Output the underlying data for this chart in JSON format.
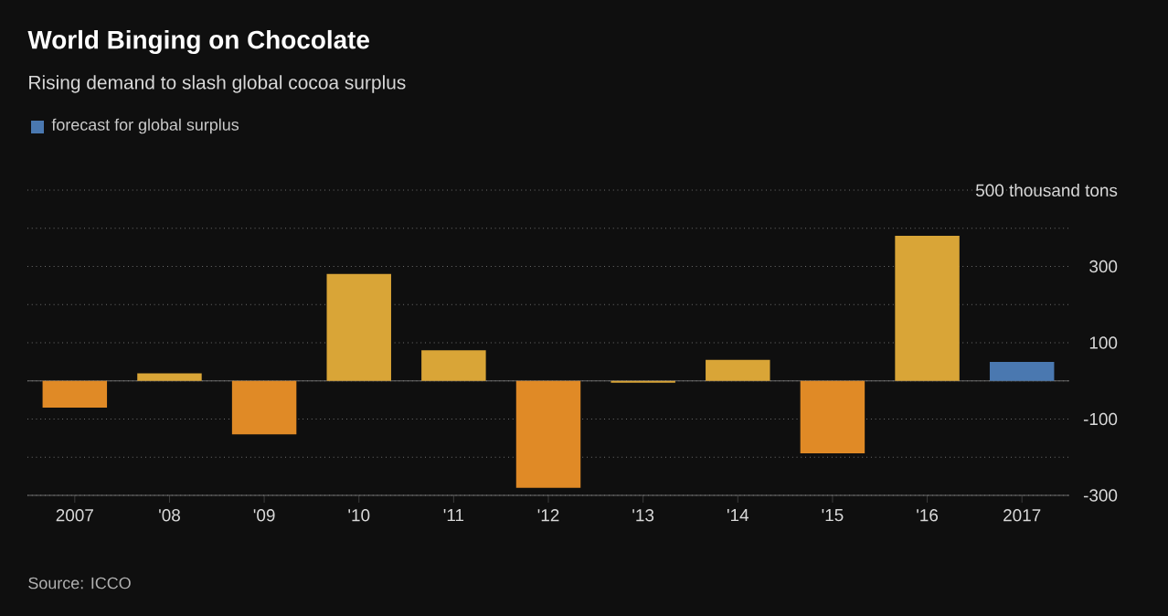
{
  "chart_data": {
    "type": "bar",
    "title": "World Binging on Chocolate",
    "subtitle": "Rising demand to slash global cocoa surplus",
    "categories": [
      "2007",
      "'08",
      "'09",
      "'10",
      "'11",
      "'12",
      "'13",
      "'14",
      "'15",
      "'16",
      "2017"
    ],
    "series": [
      {
        "colors": [
          "#e08a26",
          "#d9a537",
          "#e08a26",
          "#d9a537",
          "#d9a537",
          "#e08a26",
          "#d9a537",
          "#d9a537",
          "#e08a26",
          "#d9a537",
          "#d9a537"
        ],
        "values": [
          -70,
          20,
          -140,
          280,
          80,
          -280,
          -5,
          55,
          -190,
          380,
          null
        ]
      },
      {
        "name": "forecast for global surplus",
        "color": "#4a78b0",
        "values": [
          null,
          null,
          null,
          null,
          null,
          null,
          null,
          null,
          null,
          null,
          50
        ]
      }
    ],
    "ylim": [
      -300,
      500
    ],
    "yticks": [
      {
        "value": 500,
        "label": "500 thousand tons"
      },
      {
        "value": 400,
        "label": null
      },
      300,
      {
        "value": 200,
        "label": null
      },
      100,
      {
        "value": 0,
        "label": null
      },
      -100,
      {
        "value": -200,
        "label": null
      },
      -300
    ],
    "grid": "y",
    "legend": "top left",
    "annotations": [
      "Source: ICCO"
    ]
  }
}
